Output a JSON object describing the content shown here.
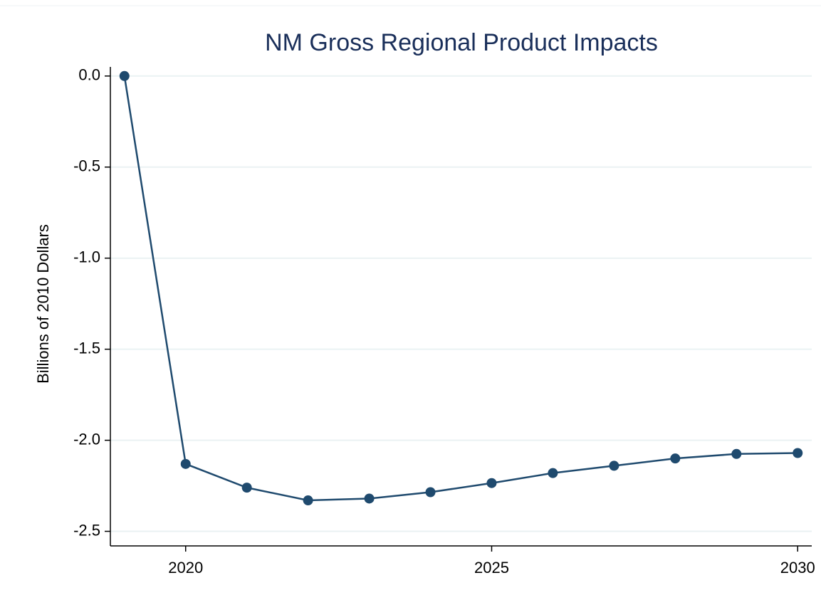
{
  "chart_data": {
    "type": "line",
    "title": "NM Gross Regional Product Impacts",
    "ylabel": "Billions of 2010 Dollars",
    "x": [
      2019,
      2020,
      2021,
      2022,
      2023,
      2024,
      2025,
      2026,
      2027,
      2028,
      2029,
      2030
    ],
    "series": [
      {
        "color": "#1f4a6e",
        "values": [
          0,
          -2.13,
          -2.26,
          -2.33,
          -2.32,
          -2.285,
          -2.235,
          -2.18,
          -2.14,
          -2.1,
          -2.075,
          -2.07
        ]
      }
    ],
    "xlim": [
      2018.77,
      2030.23
    ],
    "xticks": [
      2020,
      2025,
      2030
    ],
    "ylim": [
      -2.58,
      0.05
    ],
    "yticks": [
      {
        "value": 0,
        "label": "0.0"
      },
      -0.5,
      {
        "value": -1,
        "label": "-1.0"
      },
      -1.5,
      {
        "value": -2,
        "label": "-2.0"
      },
      -2.5
    ],
    "grid": true
  }
}
